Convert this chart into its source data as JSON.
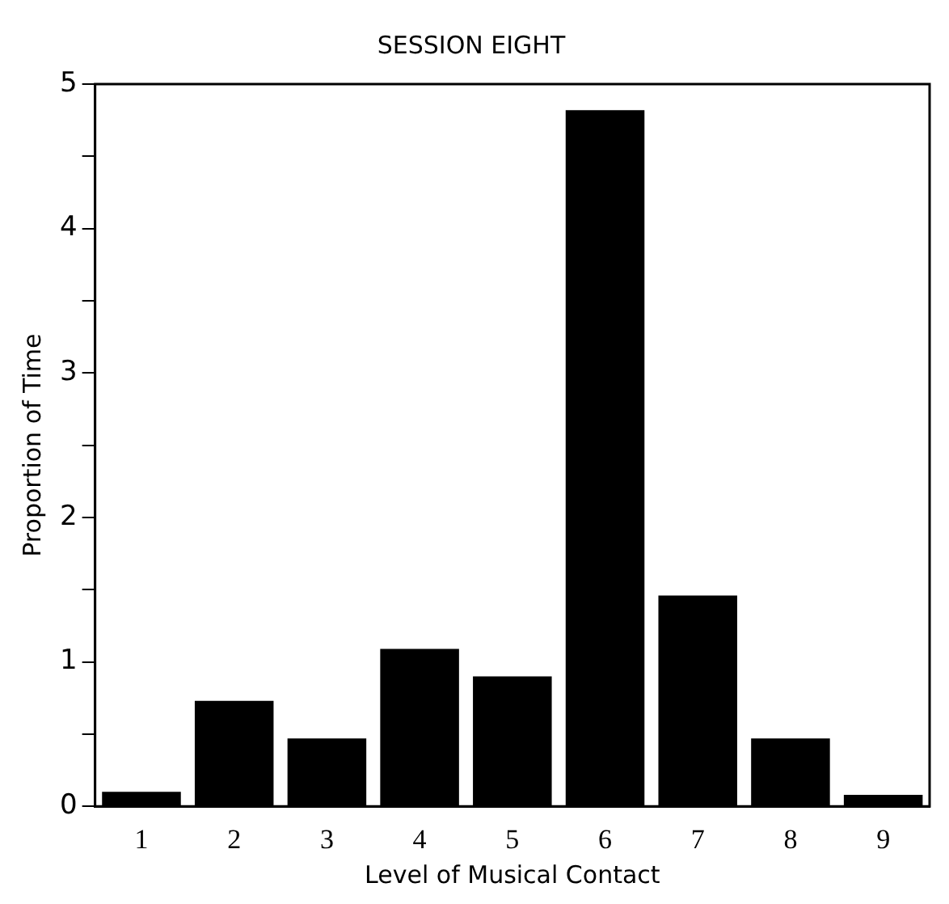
{
  "chart_data": {
    "type": "bar",
    "title": "SESSION EIGHT",
    "xlabel": "Level of Musical Contact",
    "ylabel": "Proportion of Time",
    "categories": [
      "1",
      "2",
      "3",
      "4",
      "5",
      "6",
      "7",
      "8",
      "9"
    ],
    "values": [
      0.1,
      0.73,
      0.47,
      1.09,
      0.9,
      4.82,
      1.46,
      0.47,
      0.08
    ],
    "color": "#000000",
    "ylim": [
      0,
      5
    ],
    "yticks": [
      0,
      {
        "value": 0.5,
        "label": null
      },
      1,
      {
        "value": 1.5,
        "label": null
      },
      2,
      {
        "value": 2.5,
        "label": null
      },
      3,
      {
        "value": 3.5,
        "label": null
      },
      4,
      {
        "value": 4.5,
        "label": null
      },
      5
    ],
    "grid": false,
    "legend": false
  }
}
